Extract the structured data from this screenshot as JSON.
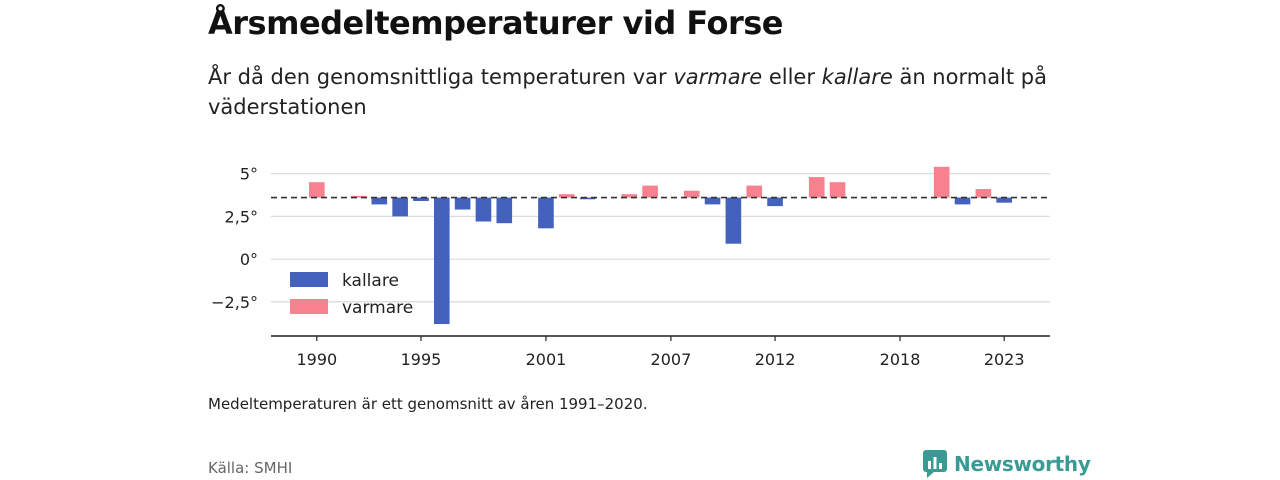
{
  "header": {
    "title": "Årsmedeltemperaturer vid Forse",
    "subtitle_part1": "År då den genomsnittliga temperaturen var ",
    "subtitle_em1": "varmare",
    "subtitle_part2": " eller ",
    "subtitle_em2": "kallare",
    "subtitle_part3": " än normalt på väderstationen"
  },
  "footer": {
    "note": "Medeltemperaturen är ett genomsnitt av åren 1991–2020.",
    "source": "Källa: SMHI",
    "brand": "Newsworthy"
  },
  "colors": {
    "kallare": "#4462bd",
    "varmare": "#f7818f",
    "brand": "#3a9b94",
    "grid": "#dddddd",
    "axis": "#222222"
  },
  "chart_data": {
    "type": "bar",
    "baseline": 3.6,
    "ylim": [
      -4.5,
      6.5
    ],
    "yticks": [
      5,
      2.5,
      0,
      -2.5
    ],
    "ytick_labels": [
      "5°",
      "2,5°",
      "0°",
      "−2,5°"
    ],
    "xticks": [
      1990,
      1995,
      2001,
      2007,
      2012,
      2018,
      2023
    ],
    "xlim": [
      1987.8,
      2025.2
    ],
    "legend": {
      "position": "bottom-left",
      "entries": [
        {
          "key": "kallare",
          "label": "kallare"
        },
        {
          "key": "varmare",
          "label": "varmare"
        }
      ]
    },
    "x": [
      1990,
      1992,
      1993,
      1994,
      1995,
      1996,
      1997,
      1998,
      1999,
      2001,
      2002,
      2003,
      2005,
      2006,
      2008,
      2009,
      2010,
      2011,
      2012,
      2014,
      2015,
      2020,
      2021,
      2022,
      2023
    ],
    "values": [
      4.5,
      3.7,
      3.2,
      2.5,
      3.4,
      -3.8,
      2.9,
      2.2,
      2.1,
      1.8,
      3.8,
      3.5,
      3.8,
      4.3,
      4.0,
      3.2,
      0.9,
      4.3,
      3.1,
      4.8,
      4.5,
      5.4,
      3.2,
      4.1,
      3.3
    ]
  }
}
